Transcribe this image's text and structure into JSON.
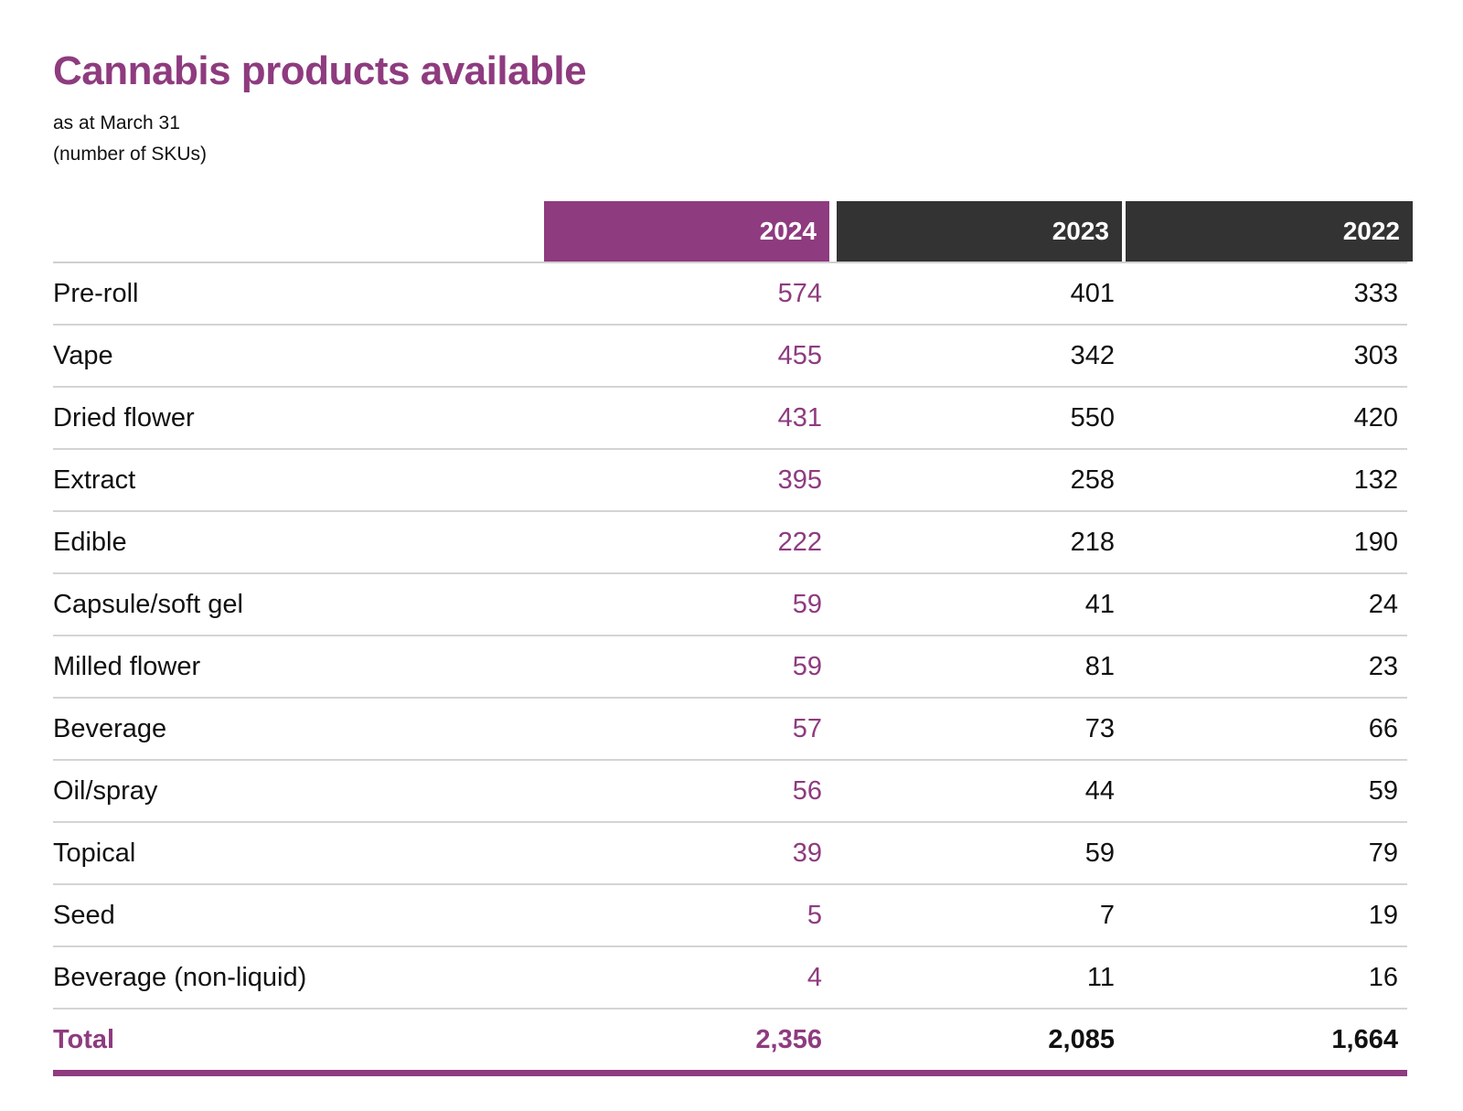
{
  "title": "Cannabis products available",
  "subtitle_line1": "as at March 31",
  "subtitle_line2": "(number of SKUs)",
  "colors": {
    "accent": "#8e3b7f",
    "header_dark": "#333333"
  },
  "columns": [
    "2024",
    "2023",
    "2022"
  ],
  "rows": [
    {
      "label": "Pre-roll",
      "v2024": "574",
      "v2023": "401",
      "v2022": "333"
    },
    {
      "label": "Vape",
      "v2024": "455",
      "v2023": "342",
      "v2022": "303"
    },
    {
      "label": "Dried flower",
      "v2024": "431",
      "v2023": "550",
      "v2022": "420"
    },
    {
      "label": "Extract",
      "v2024": "395",
      "v2023": "258",
      "v2022": "132"
    },
    {
      "label": "Edible",
      "v2024": "222",
      "v2023": "218",
      "v2022": "190"
    },
    {
      "label": "Capsule/soft gel",
      "v2024": "59",
      "v2023": "41",
      "v2022": "24"
    },
    {
      "label": "Milled flower",
      "v2024": "59",
      "v2023": "81",
      "v2022": "23"
    },
    {
      "label": "Beverage",
      "v2024": "57",
      "v2023": "73",
      "v2022": "66"
    },
    {
      "label": "Oil/spray",
      "v2024": "56",
      "v2023": "44",
      "v2022": "59"
    },
    {
      "label": "Topical",
      "v2024": "39",
      "v2023": "59",
      "v2022": "79"
    },
    {
      "label": "Seed",
      "v2024": "5",
      "v2023": "7",
      "v2022": "19"
    },
    {
      "label": "Beverage (non-liquid)",
      "v2024": "4",
      "v2023": "11",
      "v2022": "16"
    }
  ],
  "total": {
    "label": "Total",
    "v2024": "2,356",
    "v2023": "2,085",
    "v2022": "1,664"
  }
}
